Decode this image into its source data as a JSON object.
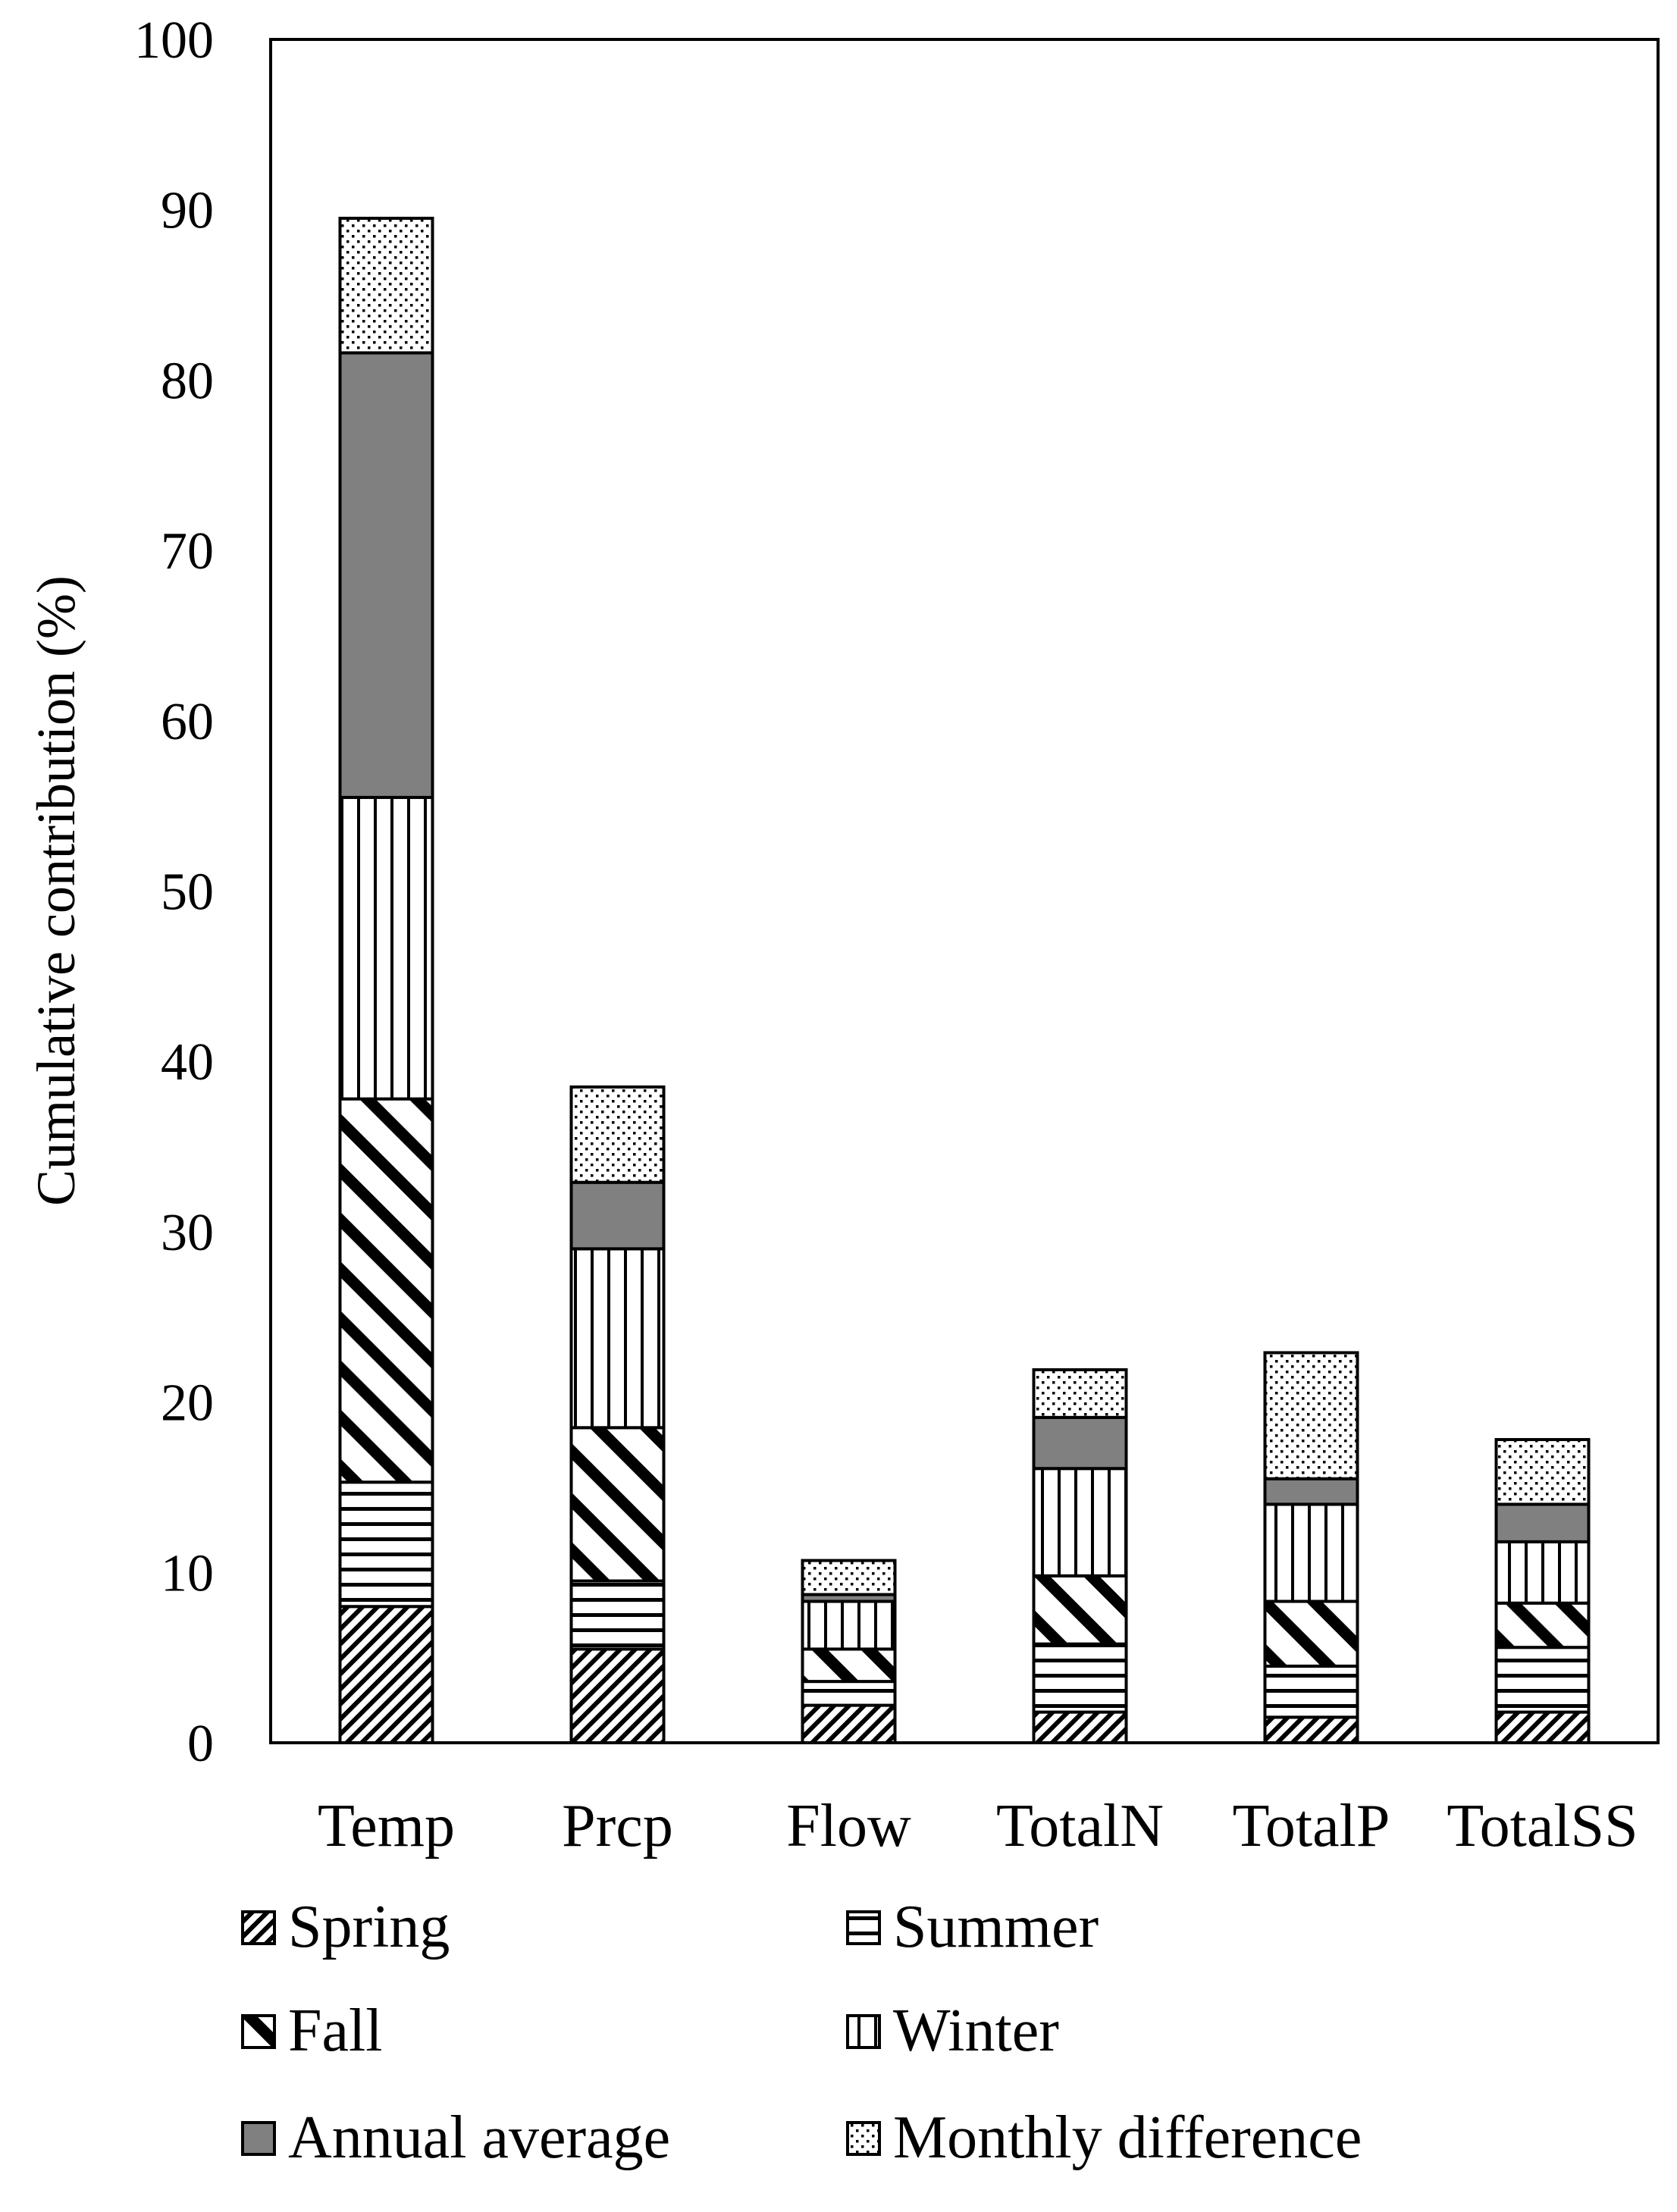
{
  "chart_data": {
    "type": "bar",
    "stacked": true,
    "title": "",
    "xlabel": "",
    "ylabel": "Cumulative contribution (%)",
    "ylim": [
      0,
      100
    ],
    "yticks": [
      0,
      10,
      20,
      30,
      40,
      50,
      60,
      70,
      80,
      90,
      100
    ],
    "grid": false,
    "legend_position": "bottom",
    "categories": [
      "Temp",
      "Prcp",
      "Flow",
      "TotalN",
      "TotalP",
      "TotalSS"
    ],
    "series": [
      {
        "name": "Spring",
        "pattern": "diagonal-lines",
        "values": [
          8.0,
          5.5,
          2.2,
          1.8,
          1.5,
          1.8
        ]
      },
      {
        "name": "Summer",
        "pattern": "horizontal-lines",
        "values": [
          7.3,
          4.0,
          1.4,
          4.0,
          3.0,
          3.8
        ]
      },
      {
        "name": "Fall",
        "pattern": "wide-diagonal",
        "values": [
          22.5,
          9.0,
          1.9,
          4.0,
          3.8,
          2.6
        ]
      },
      {
        "name": "Winter",
        "pattern": "vertical-lines",
        "values": [
          17.7,
          10.5,
          2.8,
          6.3,
          5.7,
          3.6
        ]
      },
      {
        "name": "Annual average",
        "pattern": "solid-gray",
        "values": [
          26.1,
          3.9,
          0.4,
          3.0,
          1.5,
          2.2
        ]
      },
      {
        "name": "Monthly difference",
        "pattern": "dots",
        "values": [
          7.9,
          5.6,
          2.0,
          2.8,
          7.4,
          3.8
        ]
      }
    ],
    "colors": {
      "annual_fill": "#808080",
      "bar_background": "#ffffff",
      "stroke": "#000000"
    }
  }
}
